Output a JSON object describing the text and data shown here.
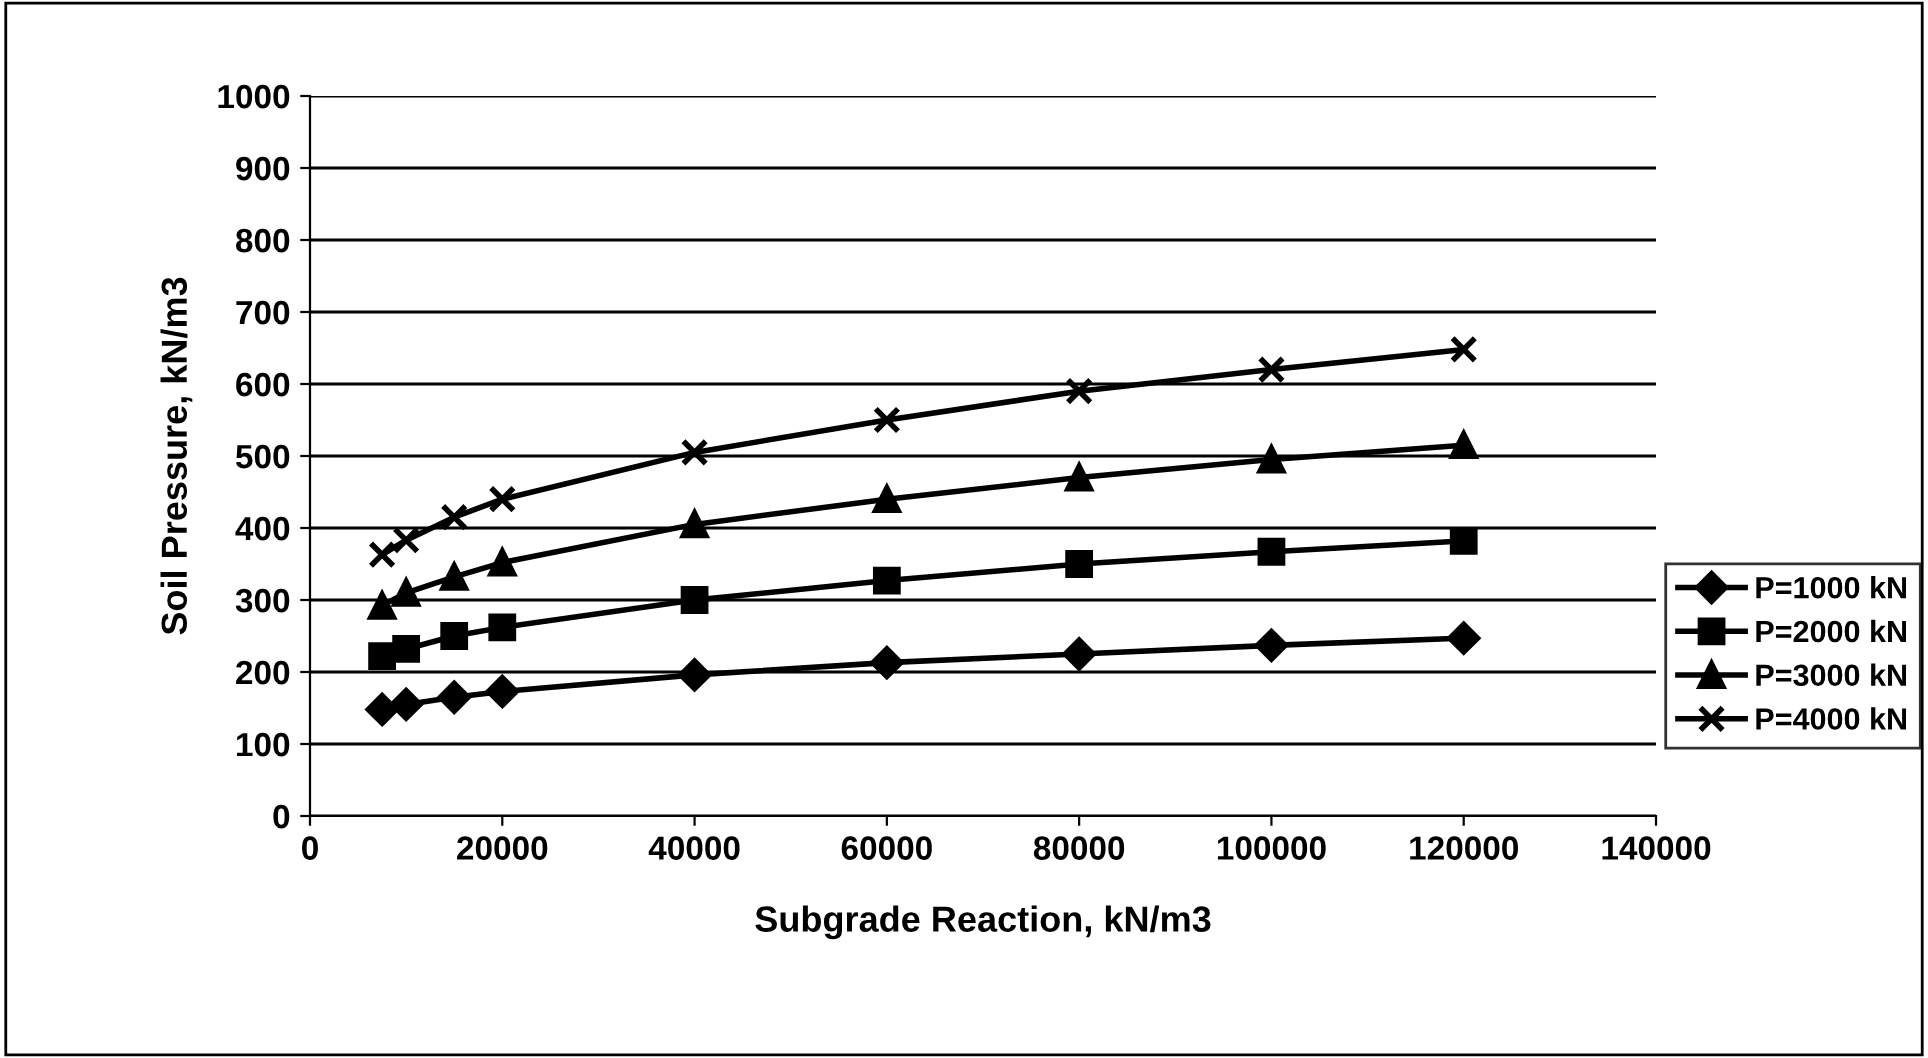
{
  "chart_data": {
    "type": "line",
    "xlabel": "Subgrade Reaction, kN/m3",
    "ylabel": "Soil Pressure, kN/m3",
    "x": [
      7500,
      10000,
      15000,
      20000,
      40000,
      60000,
      80000,
      100000,
      120000
    ],
    "series": [
      {
        "name": "P=1000 kN",
        "color": "#000000",
        "marker": "diamond",
        "values": [
          148,
          155,
          165,
          173,
          196,
          213,
          225,
          237,
          247
        ]
      },
      {
        "name": "P=2000 kN",
        "color": "#000000",
        "marker": "square",
        "values": [
          222,
          232,
          250,
          262,
          300,
          327,
          350,
          367,
          382
        ]
      },
      {
        "name": "P=3000 kN",
        "color": "#000000",
        "marker": "triangle",
        "values": [
          292,
          310,
          332,
          352,
          405,
          440,
          470,
          495,
          515
        ]
      },
      {
        "name": "P=4000 kN",
        "color": "#000000",
        "marker": "cross",
        "values": [
          363,
          383,
          415,
          440,
          505,
          550,
          590,
          620,
          648
        ]
      }
    ],
    "xlim": [
      0,
      140000
    ],
    "xticks": [
      0,
      20000,
      40000,
      60000,
      80000,
      100000,
      120000,
      140000
    ],
    "ylim": [
      0,
      1000
    ],
    "yticks": [
      0,
      100,
      200,
      300,
      400,
      500,
      600,
      700,
      800,
      900,
      1000
    ],
    "grid": "y",
    "legend": "right",
    "line_style": "solid"
  }
}
